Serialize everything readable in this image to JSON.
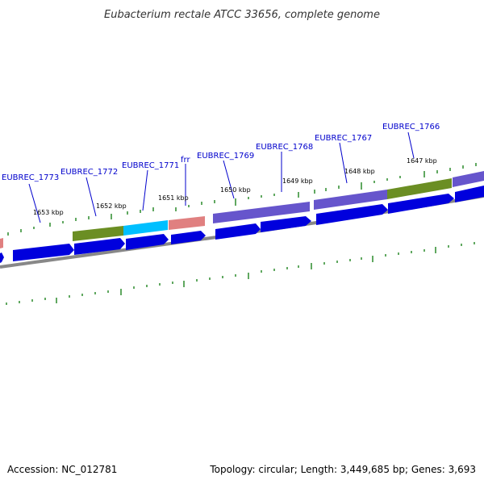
{
  "title": "Eubacterium rectale ATCC 33656, complete genome",
  "footer": {
    "accession": "Accession: NC_012781",
    "summary": "Topology: circular; Length: 3,449,685 bp; Genes: 3,693"
  },
  "colors": {
    "cds_strand": "#0000dd",
    "backbone": "#888888",
    "gc_ticks": "#2a8a2a",
    "label": "#0000cc",
    "purple": "#6655cc",
    "olive": "#6b8e23",
    "cyan": "#00bfff",
    "salmon": "#e08080"
  },
  "genes": [
    {
      "name": "EUBREC_1773"
    },
    {
      "name": "EUBREC_1772"
    },
    {
      "name": "EUBREC_1771"
    },
    {
      "name": "frr"
    },
    {
      "name": "EUBREC_1769"
    },
    {
      "name": "EUBREC_1768"
    },
    {
      "name": "EUBREC_1767"
    },
    {
      "name": "EUBREC_1766"
    }
  ],
  "ticks": [
    {
      "label": "1653 kbp"
    },
    {
      "label": "1652 kbp"
    },
    {
      "label": "1651 kbp"
    },
    {
      "label": "1650 kbp"
    },
    {
      "label": "1649 kbp"
    },
    {
      "label": "1648 kbp"
    },
    {
      "label": "1647 kbp"
    }
  ]
}
